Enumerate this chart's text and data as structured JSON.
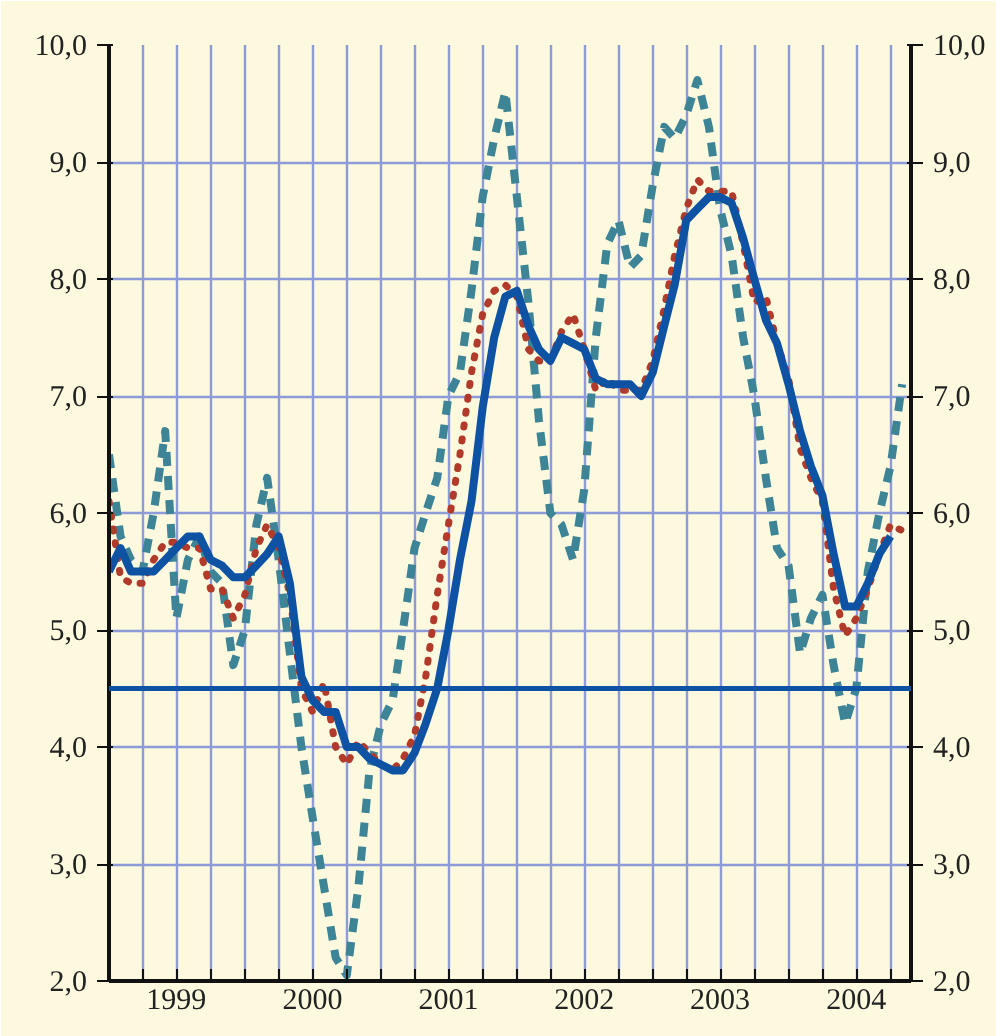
{
  "chart_data": {
    "type": "line",
    "x": [
      "1999-01",
      "1999-02",
      "1999-03",
      "1999-04",
      "1999-05",
      "1999-06",
      "1999-07",
      "1999-08",
      "1999-09",
      "1999-10",
      "1999-11",
      "1999-12",
      "2000-01",
      "2000-02",
      "2000-03",
      "2000-04",
      "2000-05",
      "2000-06",
      "2000-07",
      "2000-08",
      "2000-09",
      "2000-10",
      "2000-11",
      "2000-12",
      "2001-01",
      "2001-02",
      "2001-03",
      "2001-04",
      "2001-05",
      "2001-06",
      "2001-07",
      "2001-08",
      "2001-09",
      "2001-10",
      "2001-11",
      "2001-12",
      "2002-01",
      "2002-02",
      "2002-03",
      "2002-04",
      "2002-05",
      "2002-06",
      "2002-07",
      "2002-08",
      "2002-09",
      "2002-10",
      "2002-11",
      "2002-12",
      "2003-01",
      "2003-02",
      "2003-03",
      "2003-04",
      "2003-05",
      "2003-06",
      "2003-07",
      "2003-08",
      "2003-09",
      "2003-10",
      "2003-11",
      "2003-12",
      "2004-01",
      "2004-02",
      "2004-03",
      "2004-04",
      "2004-05",
      "2004-06",
      "2004-07",
      "2004-08",
      "2004-09",
      "2004-10",
      "2004-11"
    ],
    "series": [
      {
        "color": "#3d8496",
        "line_style": "dashed",
        "values": [
          6.5,
          5.8,
          5.6,
          5.5,
          6.0,
          6.7,
          5.1,
          5.6,
          5.8,
          5.5,
          5.4,
          4.7,
          5.0,
          5.9,
          6.3,
          5.6,
          4.8,
          4.0,
          3.4,
          2.8,
          2.2,
          2.05,
          2.8,
          3.8,
          4.2,
          4.4,
          5.0,
          5.7,
          6.0,
          6.3,
          7.0,
          7.2,
          7.9,
          8.7,
          9.2,
          9.6,
          8.7,
          7.8,
          6.8,
          6.0,
          5.9,
          5.6,
          6.2,
          7.5,
          8.3,
          8.5,
          8.1,
          8.2,
          8.8,
          9.3,
          9.2,
          9.4,
          9.7,
          9.3,
          8.6,
          8.2,
          7.5,
          7.0,
          6.3,
          5.7,
          5.55,
          4.8,
          5.1,
          5.3,
          4.7,
          4.2,
          4.5,
          5.5,
          6.0,
          6.4,
          7.1
        ]
      },
      {
        "color": "#b23a2a",
        "line_style": "dotted",
        "values": [
          6.1,
          5.45,
          5.4,
          5.4,
          5.6,
          5.75,
          5.75,
          5.7,
          5.7,
          5.35,
          5.35,
          5.1,
          5.3,
          5.7,
          5.9,
          5.7,
          5.3,
          4.5,
          4.3,
          4.55,
          4.0,
          3.85,
          4.05,
          3.95,
          3.85,
          3.8,
          3.9,
          4.1,
          4.6,
          5.3,
          5.9,
          6.5,
          7.2,
          7.7,
          7.9,
          7.95,
          7.85,
          7.4,
          7.3,
          7.3,
          7.55,
          7.7,
          7.4,
          7.05,
          7.15,
          7.05,
          7.05,
          7.05,
          7.3,
          7.75,
          8.2,
          8.6,
          8.85,
          8.75,
          8.75,
          8.75,
          8.3,
          7.8,
          7.85,
          7.45,
          7.15,
          6.55,
          6.3,
          6.1,
          5.35,
          4.95,
          5.1,
          5.35,
          5.65,
          5.9,
          5.85
        ]
      },
      {
        "color": "#0d52a3",
        "line_style": "solid",
        "values": [
          5.5,
          5.7,
          5.5,
          5.5,
          5.5,
          5.6,
          5.7,
          5.8,
          5.8,
          5.6,
          5.55,
          5.45,
          5.45,
          5.55,
          5.65,
          5.8,
          5.4,
          4.6,
          4.4,
          4.3,
          4.3,
          4.0,
          4.0,
          3.9,
          3.85,
          3.8,
          3.8,
          3.95,
          4.2,
          4.5,
          5.0,
          5.6,
          6.1,
          6.9,
          7.5,
          7.85,
          7.9,
          7.6,
          7.4,
          7.3,
          7.5,
          7.45,
          7.4,
          7.15,
          7.1,
          7.1,
          7.1,
          7.0,
          7.2,
          7.6,
          7.95,
          8.5,
          8.6,
          8.7,
          8.7,
          8.65,
          8.35,
          8.0,
          7.65,
          7.45,
          7.1,
          6.7,
          6.4,
          6.15,
          5.65,
          5.2,
          5.2,
          5.4,
          5.65,
          5.8,
          null
        ]
      }
    ],
    "xlim": [
      "1999-01-01",
      "2004-11-25"
    ],
    "xticks": [
      {
        "value": "1999-01",
        "label": null
      },
      {
        "value": "1999-04",
        "label": null
      },
      {
        "value": "1999-07",
        "label": "1999"
      },
      {
        "value": "1999-10",
        "label": null
      },
      {
        "value": "2000-01",
        "label": null
      },
      {
        "value": "2000-04",
        "label": null
      },
      {
        "value": "2000-07",
        "label": "2000"
      },
      {
        "value": "2000-10",
        "label": null
      },
      {
        "value": "2001-01",
        "label": null
      },
      {
        "value": "2001-04",
        "label": null
      },
      {
        "value": "2001-07",
        "label": "2001"
      },
      {
        "value": "2001-10",
        "label": null
      },
      {
        "value": "2002-01",
        "label": null
      },
      {
        "value": "2002-04",
        "label": null
      },
      {
        "value": "2002-07",
        "label": "2002"
      },
      {
        "value": "2002-10",
        "label": null
      },
      {
        "value": "2003-01",
        "label": null
      },
      {
        "value": "2003-04",
        "label": null
      },
      {
        "value": "2003-07",
        "label": "2003"
      },
      {
        "value": "2003-10",
        "label": null
      },
      {
        "value": "2004-01",
        "label": null
      },
      {
        "value": "2004-04",
        "label": null
      },
      {
        "value": "2004-07",
        "label": "2004"
      },
      {
        "value": "2004-10",
        "label": null
      }
    ],
    "ylim": [
      2,
      10
    ],
    "yticks": [
      {
        "value": 2,
        "label": "2,0"
      },
      {
        "value": 3,
        "label": "3,0"
      },
      {
        "value": 4,
        "label": "4,0"
      },
      {
        "value": 5,
        "label": "5,0"
      },
      {
        "value": 6,
        "label": "6,0"
      },
      {
        "value": 7,
        "label": "7,0"
      },
      {
        "value": 8,
        "label": "8,0"
      },
      {
        "value": 9,
        "label": "9,0"
      },
      {
        "value": 10,
        "label": "10,0"
      }
    ],
    "y2lim": [
      2,
      10
    ],
    "y2ticks": [
      {
        "value": 2,
        "label": "2,0"
      },
      {
        "value": 3,
        "label": "3,0"
      },
      {
        "value": 4,
        "label": "4,0"
      },
      {
        "value": 5,
        "label": "5,0"
      },
      {
        "value": 6,
        "label": "6,0"
      },
      {
        "value": 7,
        "label": "7,0"
      },
      {
        "value": 8,
        "label": "8,0"
      },
      {
        "value": 9,
        "label": "9,0"
      },
      {
        "value": 10,
        "label": "10,0"
      }
    ],
    "ref_lines": [
      {
        "axis": "y",
        "value": 4.5,
        "color": "#0d52a3"
      }
    ],
    "grid": true
  }
}
